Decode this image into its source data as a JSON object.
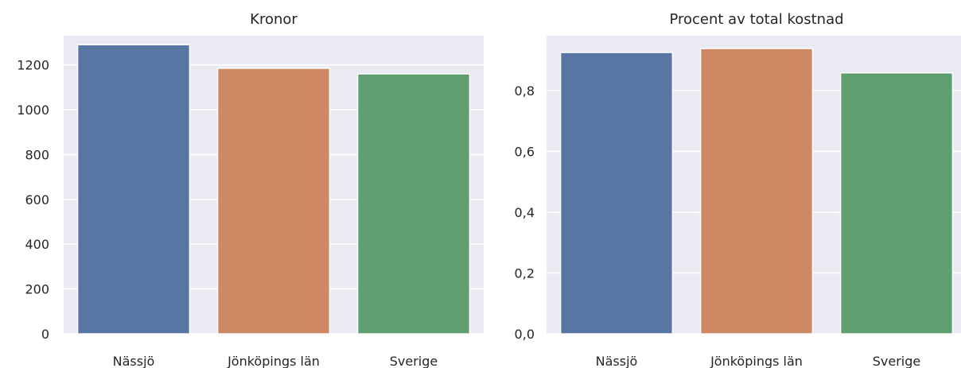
{
  "chart_data": [
    {
      "type": "bar",
      "title": "Kronor",
      "xlabel": "",
      "ylabel": "",
      "categories": [
        "Nässjö",
        "Jönköpings län",
        "Sverige"
      ],
      "values": [
        1290,
        1185,
        1160
      ],
      "ylim": [
        0,
        1330
      ],
      "yticks": [
        "0",
        "200",
        "400",
        "600",
        "800",
        "1000",
        "1200"
      ],
      "ytick_values": [
        0,
        200,
        400,
        600,
        800,
        1000,
        1200
      ],
      "colors": [
        "#5975a4",
        "#cc8963",
        "#5f9e6e"
      ],
      "background": "#eaeaf2",
      "grid": true,
      "legend": "none"
    },
    {
      "type": "bar",
      "title": "Procent av total kostnad",
      "xlabel": "",
      "ylabel": "",
      "categories": [
        "Nässjö",
        "Jönköpings län",
        "Sverige"
      ],
      "values": [
        0.925,
        0.938,
        0.858
      ],
      "ylim": [
        0,
        0.98
      ],
      "yticks": [
        "0,0",
        "0,2",
        "0,4",
        "0,6",
        "0,8"
      ],
      "ytick_values": [
        0.0,
        0.2,
        0.4,
        0.6,
        0.8
      ],
      "colors": [
        "#5975a4",
        "#cc8963",
        "#5f9e6e"
      ],
      "background": "#eaeaf2",
      "grid": true,
      "legend": "none"
    }
  ]
}
